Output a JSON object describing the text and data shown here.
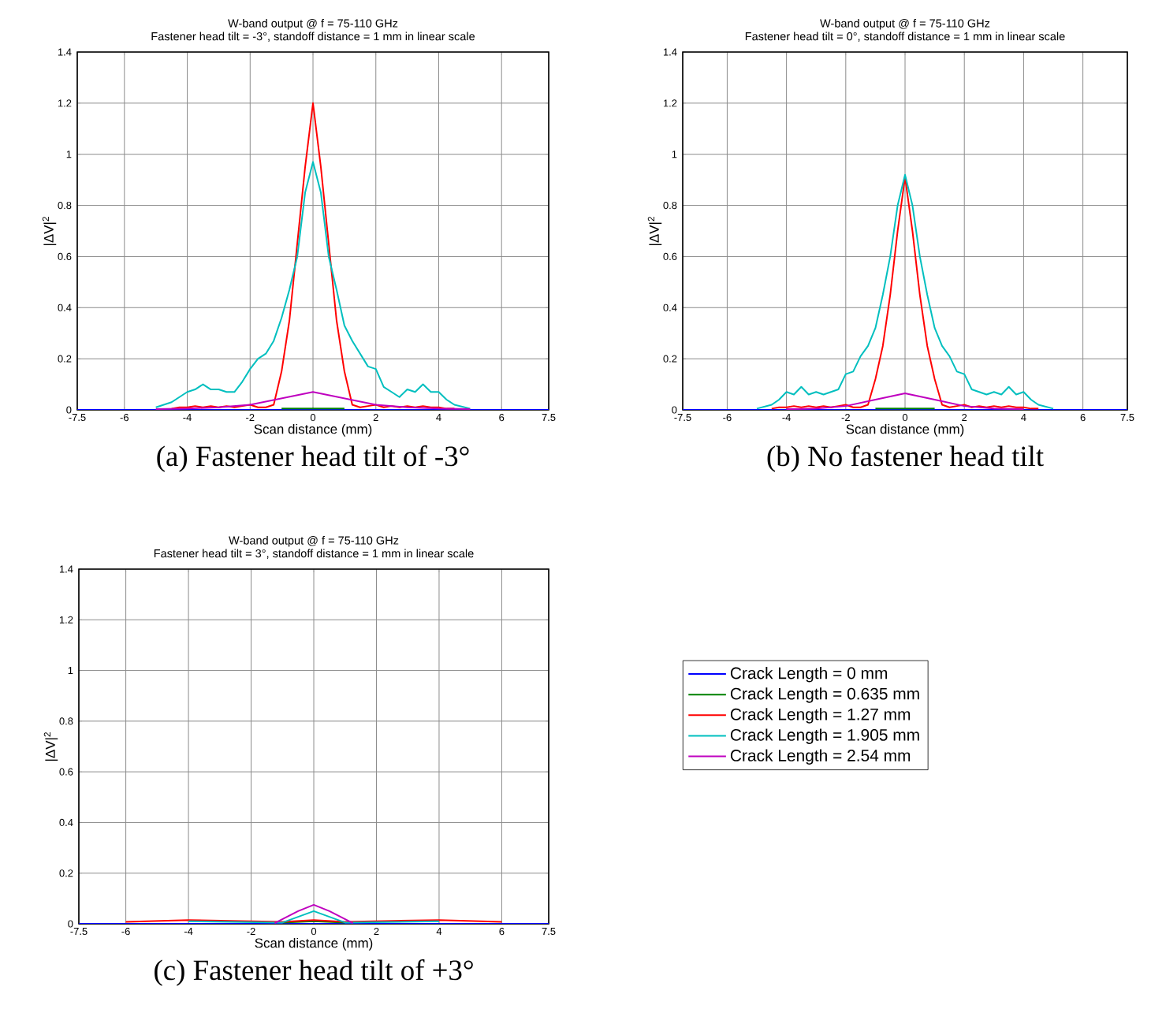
{
  "chart_data": [
    {
      "type": "line",
      "title": "W-band output @ f = 75-110 GHz",
      "subtitle": "Fastener head tilt = -3°, standoff distance = 1 mm in linear scale",
      "xlabel": "Scan distance (mm)",
      "ylabel": "|ΔV|$^{2}$",
      "annotations": [
        "(a) Fastener head tilt of -3°"
      ],
      "xlim": [
        -7.5,
        7.5
      ],
      "ylim": [
        0,
        1.4
      ],
      "xticks": [
        -7.5,
        -6,
        -4,
        -2,
        0,
        2,
        4,
        6,
        7.5
      ],
      "yticks": [
        0,
        0.2,
        0.4,
        0.6,
        0.8,
        1,
        1.2,
        1.4
      ],
      "grid": true,
      "x": [
        -5,
        -4.5,
        -4.25,
        -4,
        -3.75,
        -3.5,
        -3.25,
        -3,
        -2.75,
        -2.5,
        -2.25,
        -2,
        -1.75,
        -1.5,
        -1.25,
        -1,
        -0.75,
        -0.5,
        -0.25,
        0,
        0.25,
        0.5,
        0.75,
        1,
        1.25,
        1.5,
        1.75,
        2,
        2.25,
        2.5,
        2.75,
        3,
        3.25,
        3.5,
        3.75,
        4,
        4.25,
        4.5,
        5
      ],
      "series": [
        {
          "color": "#0000ff",
          "x": [
            -7.5,
            7.5
          ],
          "values": [
            0,
            0
          ]
        },
        {
          "color": "#008000",
          "x": [
            -1,
            0,
            1
          ],
          "values": [
            0.005,
            0.005,
            0.005
          ]
        },
        {
          "color": "#ff0000",
          "values": [
            null,
            0.005,
            0.01,
            0.01,
            0.015,
            0.01,
            0.015,
            0.01,
            0.015,
            0.01,
            0.015,
            0.02,
            0.01,
            0.01,
            0.02,
            0.15,
            0.35,
            0.65,
            0.95,
            1.2,
            0.95,
            0.65,
            0.35,
            0.15,
            0.02,
            0.01,
            0.015,
            0.02,
            0.01,
            0.015,
            0.01,
            0.015,
            0.01,
            0.015,
            0.01,
            0.01,
            0.005,
            0.005,
            null
          ]
        },
        {
          "color": "#00bfbf",
          "values": [
            0.01,
            0.03,
            0.05,
            0.07,
            0.08,
            0.1,
            0.08,
            0.08,
            0.07,
            0.07,
            0.11,
            0.16,
            0.2,
            0.22,
            0.27,
            0.36,
            0.47,
            0.6,
            0.85,
            0.97,
            0.85,
            0.6,
            0.47,
            0.33,
            0.27,
            0.22,
            0.17,
            0.16,
            0.09,
            0.07,
            0.05,
            0.08,
            0.07,
            0.1,
            0.07,
            0.07,
            0.04,
            0.02,
            0.005
          ]
        },
        {
          "color": "#bf00bf",
          "x": [
            -5,
            -4,
            -3,
            -2,
            -1,
            0,
            1,
            2,
            3,
            4,
            5
          ],
          "values": [
            0.003,
            0.005,
            0.01,
            0.02,
            0.045,
            0.07,
            0.045,
            0.02,
            0.01,
            0.005,
            0.003
          ]
        }
      ]
    },
    {
      "type": "line",
      "title": "W-band output @ f = 75-110 GHz",
      "subtitle": "Fastener head tilt = 0°, standoff distance = 1 mm in linear scale",
      "xlabel": "Scan distance (mm)",
      "ylabel": "|ΔV|$^{2}$",
      "annotations": [
        "(b) No fastener head tilt"
      ],
      "xlim": [
        -7.5,
        7.5
      ],
      "ylim": [
        0,
        1.4
      ],
      "xticks": [
        -7.5,
        -6,
        -4,
        -2,
        0,
        2,
        4,
        6,
        7.5
      ],
      "yticks": [
        0,
        0.2,
        0.4,
        0.6,
        0.8,
        1,
        1.2,
        1.4
      ],
      "grid": true,
      "x": [
        -5,
        -4.5,
        -4.25,
        -4,
        -3.75,
        -3.5,
        -3.25,
        -3,
        -2.75,
        -2.5,
        -2.25,
        -2,
        -1.75,
        -1.5,
        -1.25,
        -1,
        -0.75,
        -0.5,
        -0.25,
        0,
        0.25,
        0.5,
        0.75,
        1,
        1.25,
        1.5,
        1.75,
        2,
        2.25,
        2.5,
        2.75,
        3,
        3.25,
        3.5,
        3.75,
        4,
        4.25,
        4.5,
        5
      ],
      "series": [
        {
          "color": "#0000ff",
          "x": [
            -7.5,
            7.5
          ],
          "values": [
            0,
            0
          ]
        },
        {
          "color": "#008000",
          "x": [
            -1,
            0,
            1
          ],
          "values": [
            0.005,
            0.005,
            0.005
          ]
        },
        {
          "color": "#ff0000",
          "values": [
            null,
            0.005,
            0.01,
            0.01,
            0.015,
            0.01,
            0.015,
            0.01,
            0.015,
            0.01,
            0.015,
            0.02,
            0.01,
            0.01,
            0.02,
            0.12,
            0.25,
            0.45,
            0.7,
            0.91,
            0.7,
            0.45,
            0.25,
            0.12,
            0.02,
            0.01,
            0.015,
            0.02,
            0.01,
            0.015,
            0.01,
            0.015,
            0.01,
            0.015,
            0.01,
            0.01,
            0.005,
            0.005,
            null
          ]
        },
        {
          "color": "#00bfbf",
          "values": [
            0.005,
            0.02,
            0.04,
            0.07,
            0.06,
            0.09,
            0.06,
            0.07,
            0.06,
            0.07,
            0.08,
            0.14,
            0.15,
            0.21,
            0.25,
            0.32,
            0.45,
            0.6,
            0.8,
            0.92,
            0.8,
            0.6,
            0.45,
            0.32,
            0.25,
            0.21,
            0.15,
            0.14,
            0.08,
            0.07,
            0.06,
            0.07,
            0.06,
            0.09,
            0.06,
            0.07,
            0.04,
            0.02,
            0.005
          ]
        },
        {
          "color": "#bf00bf",
          "x": [
            -4,
            -3,
            -2,
            -1,
            0,
            1,
            2,
            3,
            4
          ],
          "values": [
            0.003,
            0.005,
            0.015,
            0.04,
            0.065,
            0.04,
            0.015,
            0.005,
            0.003
          ]
        }
      ]
    },
    {
      "type": "line",
      "title": "W-band output @ f = 75-110 GHz",
      "subtitle": "Fastener head tilt = 3°, standoff distance = 1 mm in linear scale",
      "xlabel": "Scan distance (mm)",
      "ylabel": "|ΔV|$^{2}$",
      "annotations": [
        "(c) Fastener head tilt of +3°"
      ],
      "xlim": [
        -7.5,
        7.5
      ],
      "ylim": [
        0,
        1.4
      ],
      "xticks": [
        -7.5,
        -6,
        -4,
        -2,
        0,
        2,
        4,
        6,
        7.5
      ],
      "yticks": [
        0,
        0.2,
        0.4,
        0.6,
        0.8,
        1,
        1.2,
        1.4
      ],
      "grid": true,
      "legend": "right",
      "series": [
        {
          "name": "Crack Length =    0 mm",
          "color": "#0000ff",
          "x": [
            -7.5,
            7.5
          ],
          "values": [
            0,
            0
          ]
        },
        {
          "name": "Crack Length = 0.635 mm",
          "color": "#008000",
          "x": [
            -1,
            0,
            1
          ],
          "values": [
            0.005,
            0.01,
            0.005
          ]
        },
        {
          "name": "Crack Length =  1.27 mm",
          "color": "#ff0000",
          "x": [
            -6,
            -4,
            -1,
            0,
            1,
            4,
            6
          ],
          "values": [
            0.008,
            0.015,
            0.008,
            0.015,
            0.008,
            0.015,
            0.008
          ]
        },
        {
          "name": "Crack Length = 1.905 mm",
          "color": "#00bfbf",
          "x": [
            -4,
            -1,
            0,
            1,
            4
          ],
          "values": [
            0.01,
            0.005,
            0.05,
            0.005,
            0.01
          ]
        },
        {
          "name": "Crack Length =  2.54 mm",
          "color": "#bf00bf",
          "x": [
            -1.25,
            -0.5,
            0,
            0.5,
            1.25
          ],
          "values": [
            0.003,
            0.05,
            0.075,
            0.05,
            0.003
          ]
        }
      ]
    }
  ]
}
